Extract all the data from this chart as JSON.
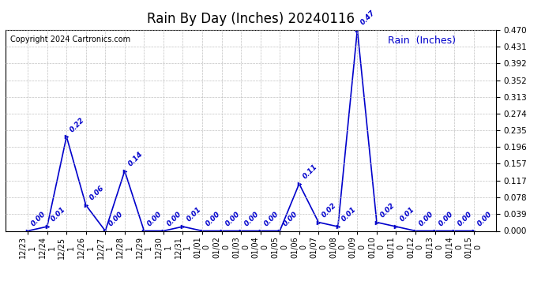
{
  "title": "Rain By Day (Inches) 20240116",
  "copyright": "Copyright 2024 Cartronics.com",
  "legend_label": "Rain  (Inches)",
  "line_color": "#0000cc",
  "background_color": "#ffffff",
  "grid_color": "#bbbbbb",
  "labels_top": [
    "12/23",
    "12/24",
    "12/25",
    "12/26",
    "12/27",
    "12/28",
    "12/29",
    "12/30",
    "12/31",
    "01/01",
    "01/02",
    "01/03",
    "01/04",
    "01/05",
    "01/06",
    "01/07",
    "01/08",
    "01/09",
    "01/10",
    "01/11",
    "01/12",
    "01/13",
    "01/14",
    "01/15"
  ],
  "labels_bottom": [
    "1",
    "1",
    "1",
    "1",
    "1",
    "1",
    "1",
    "1",
    "1",
    "0",
    "0",
    "0",
    "0",
    "0",
    "0",
    "0",
    "0",
    "0",
    "0",
    "0",
    "0",
    "0",
    "0",
    "0"
  ],
  "values": [
    0.0,
    0.01,
    0.22,
    0.06,
    0.0,
    0.14,
    0.0,
    0.0,
    0.01,
    0.0,
    0.0,
    0.0,
    0.0,
    0.0,
    0.11,
    0.02,
    0.01,
    0.47,
    0.02,
    0.01,
    0.0,
    0.0,
    0.0,
    0.0
  ],
  "ylim": [
    0.0,
    0.47
  ],
  "yticks": [
    0.0,
    0.039,
    0.078,
    0.117,
    0.157,
    0.196,
    0.235,
    0.274,
    0.313,
    0.352,
    0.392,
    0.431,
    0.47
  ],
  "figsize": [
    6.9,
    3.75
  ],
  "dpi": 100,
  "title_fontsize": 12,
  "copyright_fontsize": 7,
  "legend_fontsize": 9,
  "annotation_fontsize": 6.5,
  "tick_fontsize": 7,
  "ytick_fontsize": 7.5
}
